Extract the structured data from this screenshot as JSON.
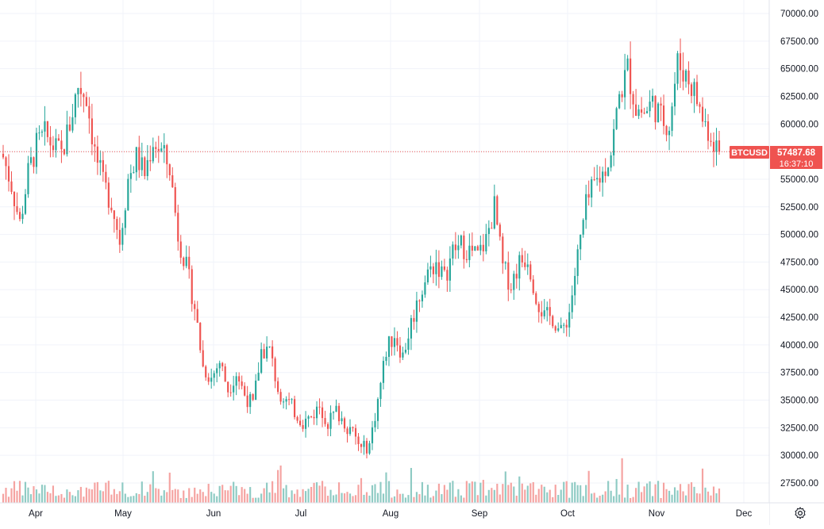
{
  "symbol": "BTCUSD",
  "last_price": "57487.68",
  "countdown": "16:37:10",
  "colors": {
    "up": "#26a69a",
    "down": "#ef5350",
    "up_volume": "#8fcbc4",
    "down_volume": "#f5a3a1",
    "grid": "#f0f3fa",
    "text": "#131722",
    "last_price_line": "#ef5350"
  },
  "axis": {
    "price_ticks": [
      "70000.00",
      "67500.00",
      "65000.00",
      "62500.00",
      "60000.00",
      "57500.00",
      "55000.00",
      "52500.00",
      "50000.00",
      "47500.00",
      "45000.00",
      "42500.00",
      "40000.00",
      "37500.00",
      "35000.00",
      "32500.00",
      "30000.00",
      "27500.00"
    ],
    "months": [
      "Apr",
      "May",
      "Jun",
      "Jul",
      "Aug",
      "Sep",
      "Oct",
      "Nov",
      "Dec"
    ]
  },
  "settings_icon": "gear-icon",
  "chart_data": {
    "type": "candlestick",
    "x_start": "Mar 22",
    "x_end": "Nov 22",
    "ylim": [
      26000,
      70800
    ],
    "last_value": 57487.68,
    "month_labels": [
      "Apr",
      "May",
      "Jun",
      "Jul",
      "Aug",
      "Sep",
      "Oct",
      "Nov",
      "Dec"
    ],
    "close_path": [
      [
        0,
        57000
      ],
      [
        3,
        54500
      ],
      [
        6,
        51000
      ],
      [
        9,
        55500
      ],
      [
        12,
        58000
      ],
      [
        15,
        59000
      ],
      [
        18,
        58000
      ],
      [
        21,
        57200
      ],
      [
        24,
        60000
      ],
      [
        27,
        63500
      ],
      [
        30,
        62500
      ],
      [
        33,
        57500
      ],
      [
        36,
        54500
      ],
      [
        39,
        53000
      ],
      [
        42,
        49500
      ],
      [
        45,
        55000
      ],
      [
        48,
        57000
      ],
      [
        51,
        55500
      ],
      [
        54,
        58500
      ],
      [
        57,
        57500
      ],
      [
        60,
        56000
      ],
      [
        63,
        50000
      ],
      [
        66,
        47000
      ],
      [
        69,
        43500
      ],
      [
        72,
        38000
      ],
      [
        75,
        37000
      ],
      [
        78,
        38500
      ],
      [
        81,
        36000
      ],
      [
        84,
        37500
      ],
      [
        87,
        35500
      ],
      [
        90,
        34500
      ],
      [
        93,
        39500
      ],
      [
        96,
        39500
      ],
      [
        99,
        36000
      ],
      [
        102,
        35000
      ],
      [
        105,
        34000
      ],
      [
        108,
        33000
      ],
      [
        111,
        33500
      ],
      [
        114,
        34500
      ],
      [
        117,
        33000
      ],
      [
        120,
        34000
      ],
      [
        123,
        33000
      ],
      [
        126,
        32000
      ],
      [
        129,
        30500
      ],
      [
        132,
        31000
      ],
      [
        135,
        35000
      ],
      [
        138,
        39500
      ],
      [
        141,
        41000
      ],
      [
        144,
        39000
      ],
      [
        147,
        42000
      ],
      [
        150,
        44500
      ],
      [
        153,
        46500
      ],
      [
        156,
        47500
      ],
      [
        159,
        46000
      ],
      [
        162,
        48500
      ],
      [
        165,
        49000
      ],
      [
        168,
        48500
      ],
      [
        171,
        48000
      ],
      [
        174,
        49500
      ],
      [
        177,
        52500
      ],
      [
        180,
        47000
      ],
      [
        183,
        45500
      ],
      [
        186,
        47500
      ],
      [
        189,
        48000
      ],
      [
        192,
        44500
      ],
      [
        195,
        42500
      ],
      [
        198,
        42500
      ],
      [
        201,
        41000
      ],
      [
        204,
        43000
      ],
      [
        207,
        48000
      ],
      [
        210,
        52500
      ],
      [
        213,
        54500
      ],
      [
        216,
        55500
      ],
      [
        219,
        57500
      ],
      [
        222,
        62500
      ],
      [
        225,
        65000
      ],
      [
        228,
        61500
      ],
      [
        231,
        61000
      ],
      [
        234,
        62000
      ],
      [
        237,
        60500
      ],
      [
        240,
        60000
      ],
      [
        243,
        65500
      ],
      [
        246,
        64500
      ],
      [
        249,
        63000
      ],
      [
        252,
        60500
      ],
      [
        255,
        59000
      ],
      [
        258,
        57500
      ]
    ],
    "volume_range": [
      0,
      1
    ]
  }
}
